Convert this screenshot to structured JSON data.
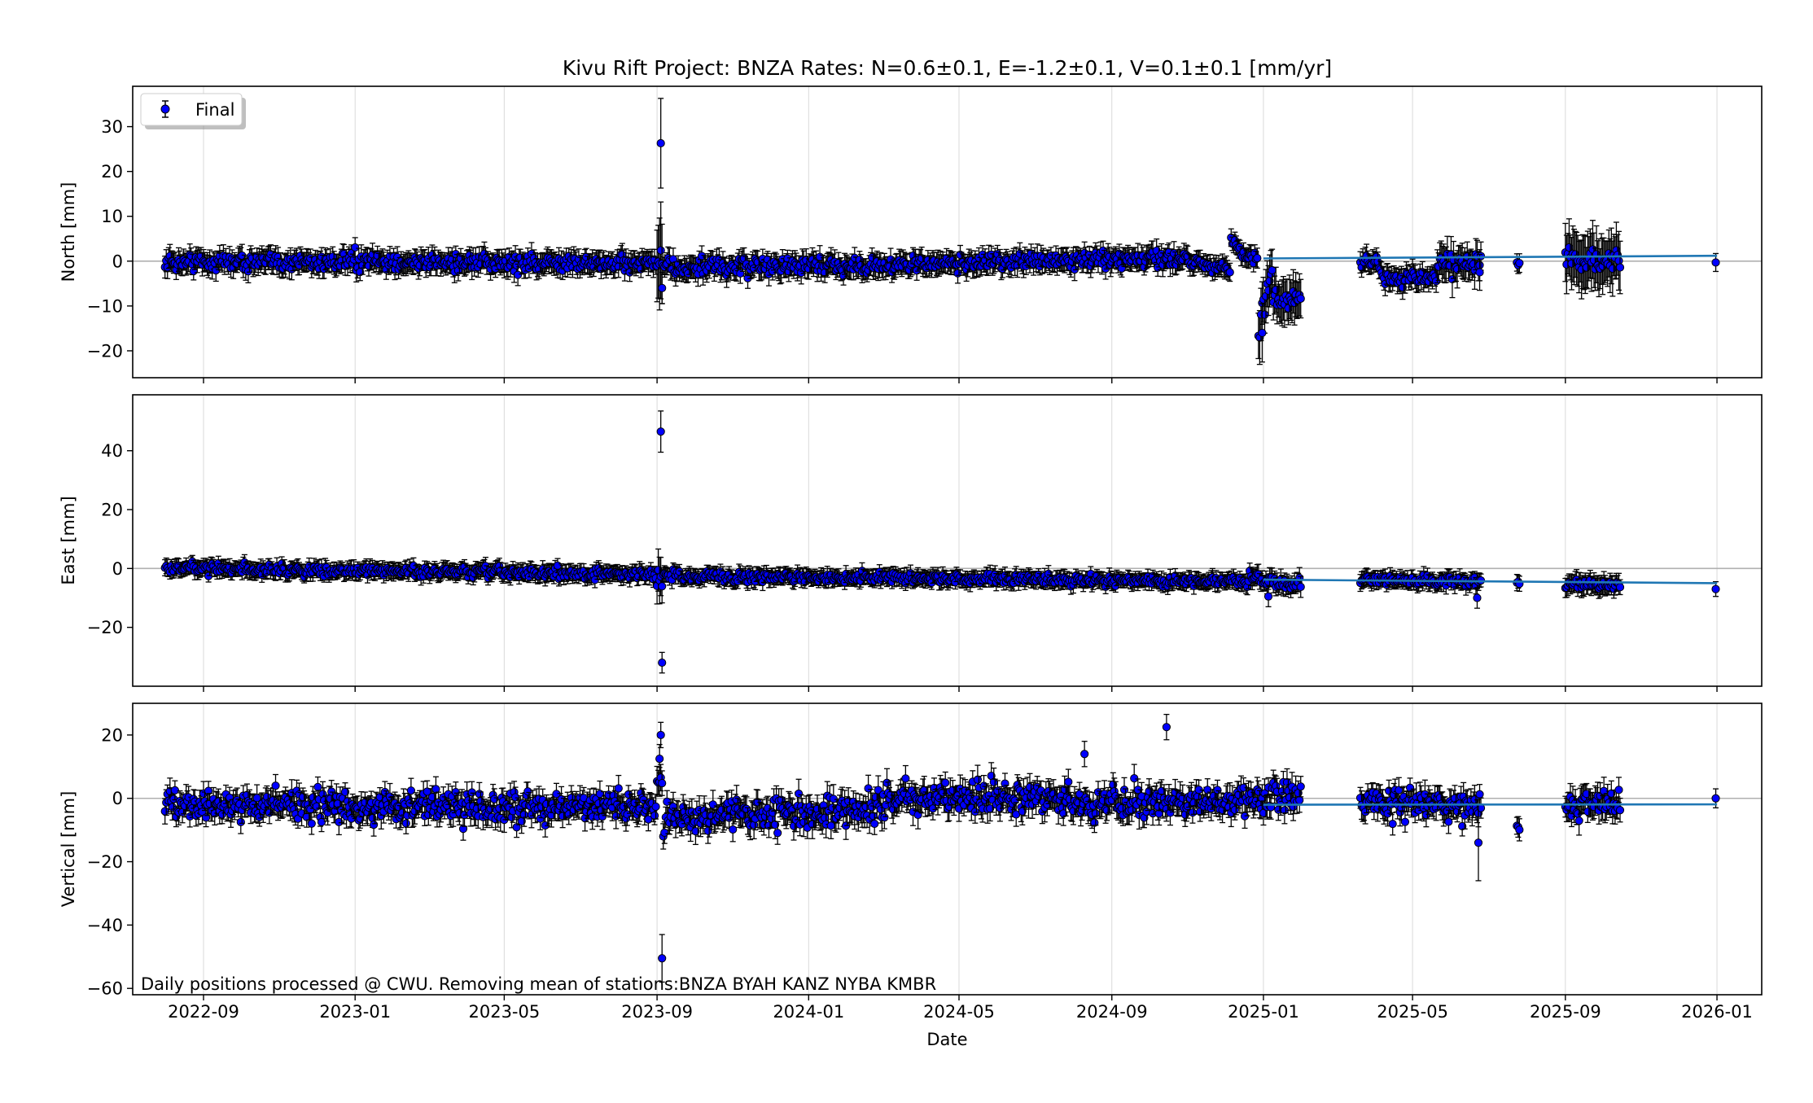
{
  "chart_data": {
    "type": "scatter",
    "title": "Kivu Rift Project: BNZA  Rates: N=0.6±0.1, E=-1.2±0.1, V=0.1±0.1 [mm/yr]",
    "xlabel": "Date",
    "x_ticks": [
      "2022-09",
      "2023-01",
      "2023-05",
      "2023-09",
      "2024-01",
      "2024-05",
      "2024-09",
      "2025-01",
      "2025-05",
      "2025-09",
      "2026-01"
    ],
    "xlim": [
      "2022-07-06",
      "2026-02-06"
    ],
    "grid": true,
    "legend": {
      "entries": [
        "Final"
      ],
      "placement": "top-left"
    },
    "annotation": "Daily positions processed @ CWU. Removing mean of stations:BNZA BYAH KANZ NYBA KMBR",
    "colors": {
      "marker": "#0000ff",
      "marker_edge": "#000000",
      "errorbar": "#000000",
      "fit_line": "#1f77b4",
      "zero_line": "#b0b0b0",
      "grid": "#d9d9d9"
    },
    "panels": [
      {
        "ylabel": "North [mm]",
        "ylim": [
          -26,
          39
        ],
        "yticks": [
          -20,
          -10,
          0,
          10,
          20,
          30
        ],
        "fit_line": {
          "start": {
            "date": "2025-01-01",
            "value": 0.6
          },
          "end": {
            "date": "2026-01-01",
            "value": 1.2
          }
        },
        "segments": [
          {
            "start": "2022-08-01",
            "end": "2023-08-31",
            "base_start": 0.0,
            "base_end": -0.5,
            "noise": 1.3,
            "err": 2.2
          },
          {
            "start": "2023-09-01",
            "end": "2023-09-05",
            "base_start": -1.0,
            "base_end": -1.0,
            "noise": 3.5,
            "err": 9.5
          },
          {
            "start": "2023-09-06",
            "end": "2024-02-29",
            "base_start": -1.5,
            "base_end": -1.0,
            "noise": 1.3,
            "err": 2.3
          },
          {
            "start": "2024-03-01",
            "end": "2024-10-31",
            "base_start": -0.8,
            "base_end": 0.8,
            "noise": 1.2,
            "err": 2.2
          },
          {
            "start": "2024-11-01",
            "end": "2024-12-05",
            "base_start": 0.2,
            "base_end": -2.0,
            "noise": 1.0,
            "err": 2.0
          },
          {
            "start": "2024-12-06",
            "end": "2024-12-12",
            "base_start": 5.0,
            "base_end": 3.0,
            "noise": 0.6,
            "err": 1.8
          },
          {
            "start": "2024-12-13",
            "end": "2024-12-27",
            "base_start": 2.0,
            "base_end": 0.5,
            "noise": 0.8,
            "err": 2.0
          },
          {
            "start": "2024-12-28",
            "end": "2025-01-08",
            "base_start": -14.0,
            "base_end": -3.0,
            "noise": 2.5,
            "err": 5.0
          },
          {
            "start": "2025-01-09",
            "end": "2025-01-31",
            "base_start": -9.0,
            "base_end": -8.0,
            "noise": 1.6,
            "err": 4.5
          },
          {
            "start": "2025-03-20",
            "end": "2025-04-05",
            "base_start": 0.5,
            "base_end": -1.0,
            "noise": 1.2,
            "err": 2.3
          },
          {
            "start": "2025-04-06",
            "end": "2025-05-20",
            "base_start": -4.0,
            "base_end": -3.5,
            "noise": 1.1,
            "err": 2.3
          },
          {
            "start": "2025-05-21",
            "end": "2025-06-25",
            "base_start": -1.0,
            "base_end": 0.5,
            "noise": 1.5,
            "err": 3.5
          },
          {
            "start": "2025-07-24",
            "end": "2025-07-26",
            "base_start": -1.0,
            "base_end": -0.5,
            "noise": 0.5,
            "err": 2.0
          },
          {
            "start": "2025-09-01",
            "end": "2025-10-15",
            "base_start": 0.5,
            "base_end": 0.0,
            "noise": 1.8,
            "err": 5.5
          }
        ],
        "outliers": [
          {
            "date": "2023-09-04",
            "value": 26.3,
            "err": 10.0
          },
          {
            "date": "2023-09-05",
            "value": -6.0,
            "err": 3.5
          },
          {
            "date": "2024-12-31",
            "value": -16.0,
            "err": 6.5
          },
          {
            "date": "2025-06-24",
            "value": -2.5,
            "err": 4.0
          },
          {
            "date": "2025-12-31",
            "value": -0.3,
            "err": 2.0
          }
        ]
      },
      {
        "ylabel": "East [mm]",
        "ylim": [
          -40,
          59
        ],
        "yticks": [
          -20,
          0,
          20,
          40
        ],
        "fit_line": {
          "start": {
            "date": "2025-01-01",
            "value": -3.8
          },
          "end": {
            "date": "2026-01-01",
            "value": -5.0
          }
        },
        "segments": [
          {
            "start": "2022-08-01",
            "end": "2023-08-31",
            "base_start": 0.0,
            "base_end": -2.0,
            "noise": 1.2,
            "err": 2.5
          },
          {
            "start": "2023-09-01",
            "end": "2023-09-05",
            "base_start": -3.0,
            "base_end": -3.0,
            "noise": 2.0,
            "err": 7.0
          },
          {
            "start": "2023-09-06",
            "end": "2024-12-20",
            "base_start": -2.5,
            "base_end": -4.5,
            "noise": 1.2,
            "err": 2.5
          },
          {
            "start": "2024-12-21",
            "end": "2025-01-31",
            "base_start": -3.0,
            "base_end": -6.0,
            "noise": 1.5,
            "err": 3.0
          },
          {
            "start": "2025-03-20",
            "end": "2025-06-25",
            "base_start": -4.0,
            "base_end": -4.5,
            "noise": 1.1,
            "err": 2.5
          },
          {
            "start": "2025-07-24",
            "end": "2025-07-26",
            "base_start": -5.0,
            "base_end": -5.0,
            "noise": 0.5,
            "err": 2.5
          },
          {
            "start": "2025-09-01",
            "end": "2025-10-15",
            "base_start": -5.0,
            "base_end": -5.5,
            "noise": 1.2,
            "err": 3.0
          }
        ],
        "outliers": [
          {
            "date": "2023-09-04",
            "value": 46.5,
            "err": 7.0
          },
          {
            "date": "2023-09-05",
            "value": -32.0,
            "err": 3.5
          },
          {
            "date": "2025-01-05",
            "value": -9.5,
            "err": 3.5
          },
          {
            "date": "2025-06-22",
            "value": -10.0,
            "err": 3.5
          },
          {
            "date": "2025-12-31",
            "value": -7.0,
            "err": 2.5
          }
        ]
      },
      {
        "ylabel": "Vertical [mm]",
        "ylim": [
          -62,
          30
        ],
        "yticks": [
          -60,
          -40,
          -20,
          0,
          20
        ],
        "fit_line": {
          "start": {
            "date": "2025-01-01",
            "value": -2.0
          },
          "end": {
            "date": "2026-01-01",
            "value": -1.9
          }
        },
        "segments": [
          {
            "start": "2022-08-01",
            "end": "2023-08-31",
            "base_start": -2.0,
            "base_end": -3.0,
            "noise": 3.2,
            "err": 3.5
          },
          {
            "start": "2023-09-01",
            "end": "2023-09-05",
            "base_start": 5.0,
            "base_end": 5.0,
            "noise": 5.0,
            "err": 4.5
          },
          {
            "start": "2023-09-06",
            "end": "2024-02-29",
            "base_start": -6.0,
            "base_end": -3.0,
            "noise": 3.5,
            "err": 3.8
          },
          {
            "start": "2024-03-01",
            "end": "2024-07-31",
            "base_start": 0.0,
            "base_end": 0.5,
            "noise": 3.5,
            "err": 3.8
          },
          {
            "start": "2024-08-01",
            "end": "2025-01-31",
            "base_start": -3.0,
            "base_end": 1.0,
            "noise": 3.3,
            "err": 3.8
          },
          {
            "start": "2025-03-20",
            "end": "2025-06-25",
            "base_start": -0.5,
            "base_end": -3.0,
            "noise": 3.3,
            "err": 3.8
          },
          {
            "start": "2025-07-24",
            "end": "2025-07-26",
            "base_start": -8.0,
            "base_end": -9.0,
            "noise": 1.0,
            "err": 3.0
          },
          {
            "start": "2025-09-01",
            "end": "2025-10-15",
            "base_start": -2.0,
            "base_end": -1.0,
            "noise": 3.5,
            "err": 4.0
          }
        ],
        "outliers": [
          {
            "date": "2023-09-03",
            "value": 12.5,
            "err": 4.5
          },
          {
            "date": "2023-09-04",
            "value": 20.0,
            "err": 4.0
          },
          {
            "date": "2023-09-05",
            "value": -50.5,
            "err": 7.5
          },
          {
            "date": "2024-10-15",
            "value": 22.5,
            "err": 4.0
          },
          {
            "date": "2024-08-10",
            "value": 14.0,
            "err": 4.0
          },
          {
            "date": "2025-06-23",
            "value": -14.0,
            "err": 12.0
          },
          {
            "date": "2025-12-31",
            "value": 0.0,
            "err": 3.0
          }
        ]
      }
    ]
  }
}
